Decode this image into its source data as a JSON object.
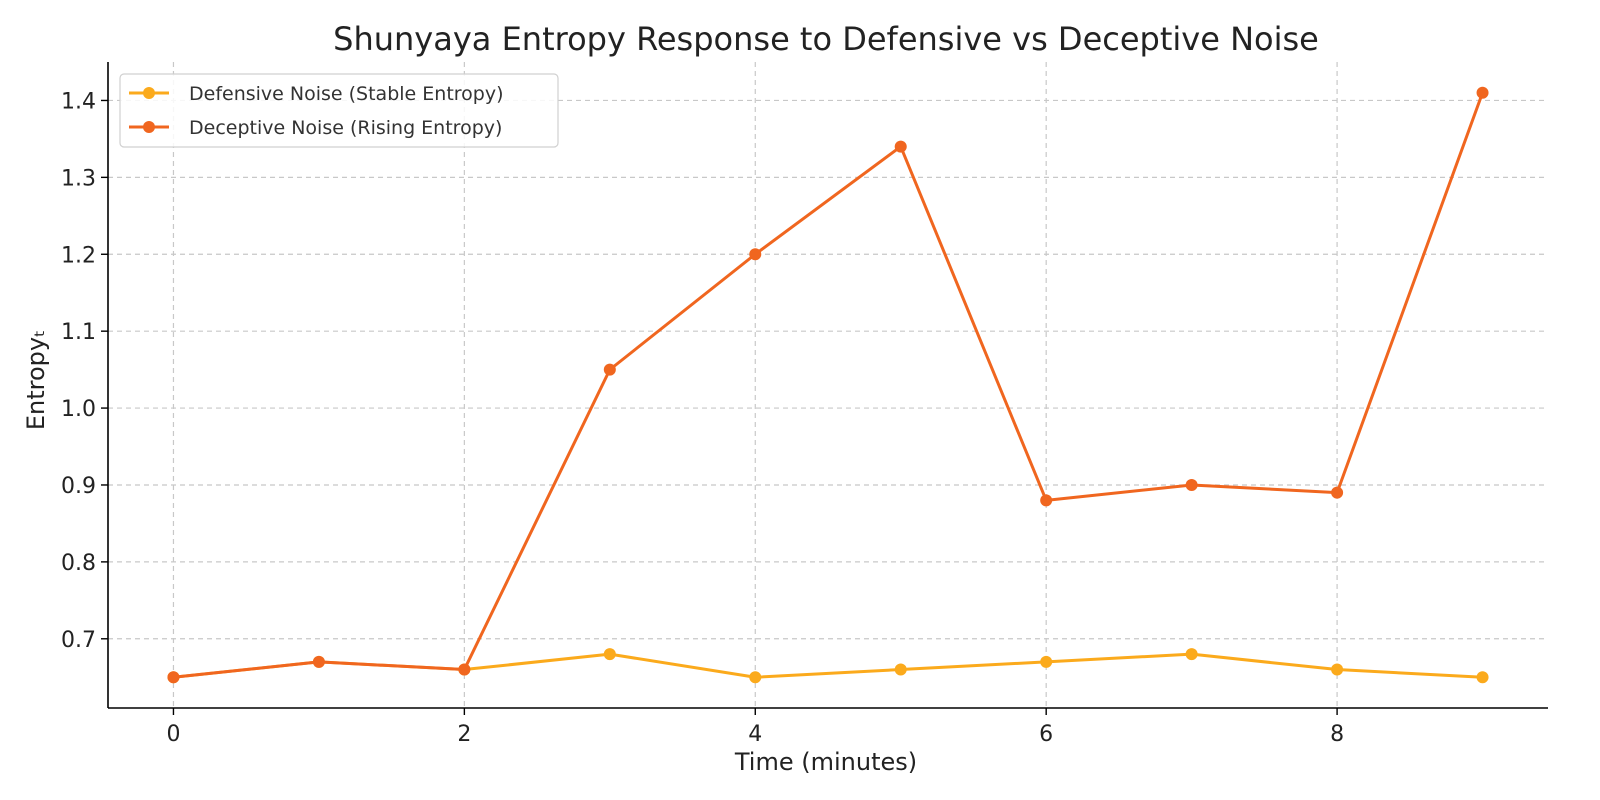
{
  "chart_data": {
    "type": "line",
    "title": "Shunyaya Entropy Response to Defensive vs Deceptive Noise",
    "xlabel": "Time (minutes)",
    "ylabel": "Entropyₜ",
    "x": [
      0,
      1,
      2,
      3,
      4,
      5,
      6,
      7,
      8,
      9
    ],
    "xlim": [
      -0.45,
      9.45
    ],
    "ylim": [
      0.61,
      1.45
    ],
    "xticks": [
      0,
      2,
      4,
      6,
      8
    ],
    "yticks": [
      0.7,
      0.8,
      0.9,
      1.0,
      1.1,
      1.2,
      1.3,
      1.4
    ],
    "ytick_labels": [
      "0.7",
      "0.8",
      "0.9",
      "1.0",
      "1.1",
      "1.2",
      "1.3",
      "1.4"
    ],
    "grid": true,
    "legend_position": "top-left",
    "series": [
      {
        "name": "Defensive Noise (Stable Entropy)",
        "color": "#FBAA1C",
        "marker": "circle",
        "values": [
          0.65,
          0.67,
          0.66,
          0.68,
          0.65,
          0.66,
          0.67,
          0.68,
          0.66,
          0.65
        ]
      },
      {
        "name": "Deceptive Noise (Rising Entropy)",
        "color": "#F0661F",
        "marker": "circle",
        "values": [
          0.65,
          0.67,
          0.66,
          1.05,
          1.2,
          1.34,
          0.88,
          0.9,
          0.89,
          1.41
        ]
      }
    ]
  }
}
